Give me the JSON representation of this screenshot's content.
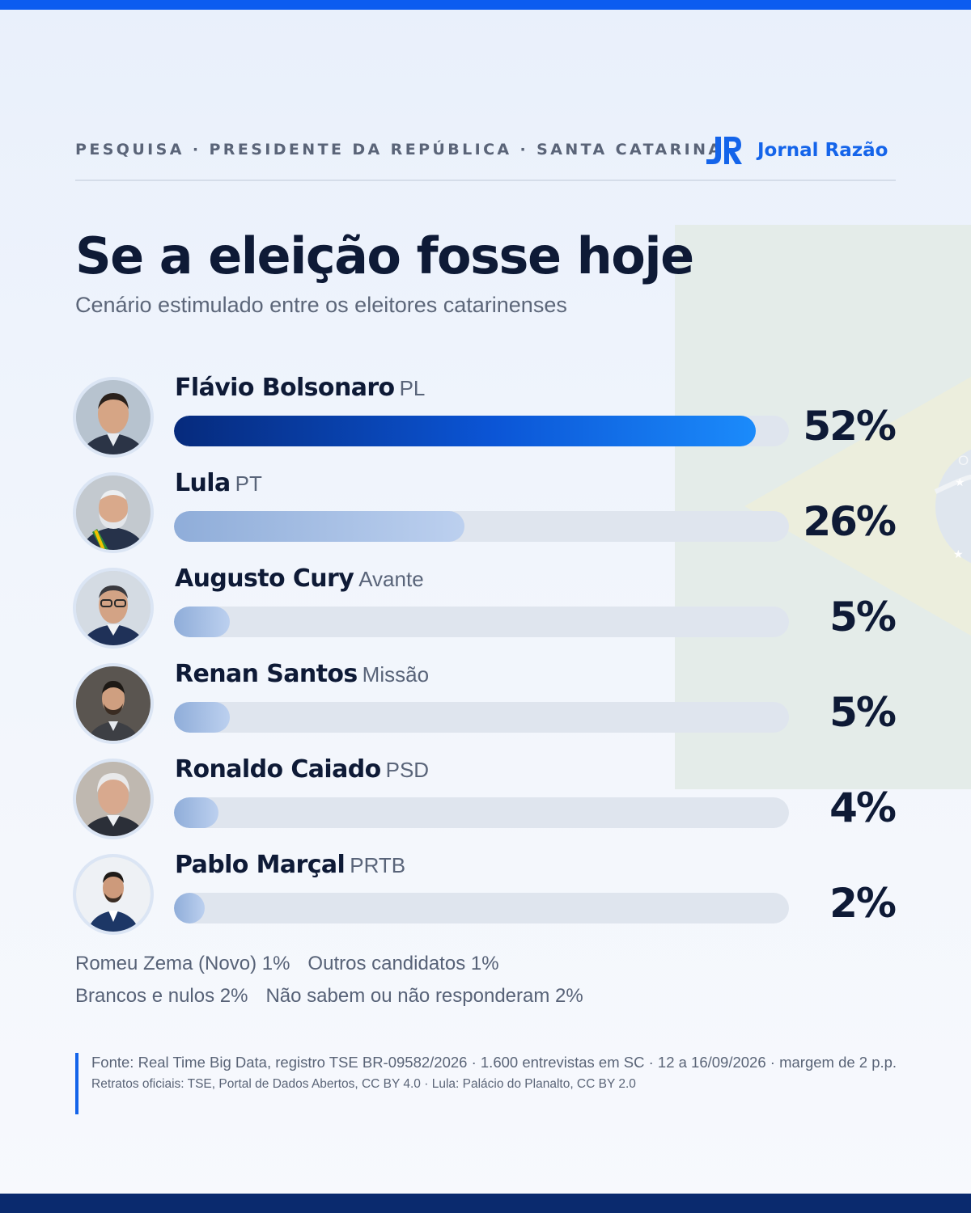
{
  "header": {
    "kicker": "PESQUISA · PRESIDENTE DA REPÚBLICA · SANTA CATARINA",
    "brand_mark": "JR",
    "brand_name": "Jornal Razão",
    "brand_color": "#1464ea"
  },
  "title": "Se a eleição fosse hoje",
  "subtitle": "Cenário estimulado entre os eleitores catarinenses",
  "chart_data": {
    "type": "bar",
    "orientation": "horizontal",
    "categories": [
      "Flávio Bolsonaro",
      "Lula",
      "Augusto Cury",
      "Renan Santos",
      "Ronaldo Caiado",
      "Pablo Marçal"
    ],
    "parties": [
      "PL",
      "PT",
      "Avante",
      "Missão",
      "PSD",
      "PRTB"
    ],
    "values": [
      52,
      26,
      5,
      5,
      4,
      2
    ],
    "labels": [
      "52%",
      "26%",
      "5%",
      "5%",
      "4%",
      "2%"
    ],
    "xlim": [
      0,
      55
    ],
    "grid": false,
    "colors": {
      "leader": "#0b55d6",
      "others": "#a9c0e6",
      "track": "#dfe5ee"
    }
  },
  "others_line1": [
    "Romeu Zema (Novo) 1%",
    "Outros candidatos 1%"
  ],
  "others_line2": [
    "Brancos e nulos 2%",
    "Não sabem ou não responderam 2%"
  ],
  "source": {
    "line1": "Fonte: Real Time Big Data, registro TSE BR-09582/2026 · 1.600 entrevistas em SC · 12 a 16/09/2026 · margem de 2 p.p.",
    "line2": "Retratos oficiais: TSE, Portal de Dados Abertos, CC BY 4.0 · Lula: Palácio do Planalto, CC BY 2.0"
  },
  "flag_icon": "brazil-flag-decoration",
  "flag_letter": "O"
}
